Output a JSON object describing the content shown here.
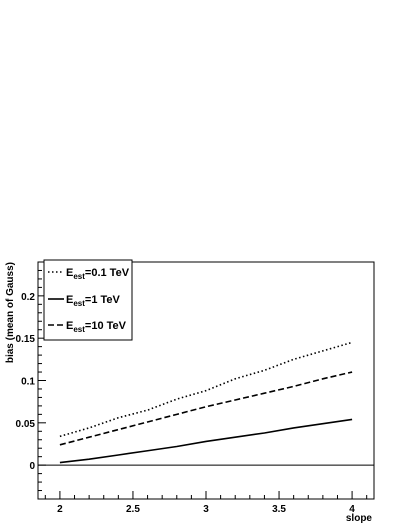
{
  "chart_data": {
    "type": "line",
    "xlabel": "slope",
    "ylabel": "bias (mean of Gauss)",
    "xlim": [
      1.85,
      4.15
    ],
    "ylim": [
      -0.04,
      0.24
    ],
    "x_ticks": [
      {
        "value": 2,
        "label": "2"
      },
      {
        "value": 2.5,
        "label": "2.5"
      },
      {
        "value": 3,
        "label": "3"
      },
      {
        "value": 3.5,
        "label": "3.5"
      },
      {
        "value": 4,
        "label": "4"
      }
    ],
    "y_ticks": [
      {
        "value": 0,
        "label": "0"
      },
      {
        "value": 0.05,
        "label": "0.05"
      },
      {
        "value": 0.1,
        "label": "0.1"
      },
      {
        "value": 0.15,
        "label": "0.15"
      },
      {
        "value": 0.2,
        "label": "0.2"
      }
    ],
    "reference_line_y": 0,
    "grid": false,
    "legend_position": "top-left",
    "x": [
      2.0,
      2.2,
      2.4,
      2.6,
      2.8,
      3.0,
      3.2,
      3.4,
      3.6,
      3.8,
      4.0
    ],
    "series": [
      {
        "name": "E_est=0.1 TeV",
        "label_main": "E",
        "label_sub": "est",
        "label_rest": "=0.1 TeV",
        "style": "dotted",
        "values": [
          0.034,
          0.044,
          0.056,
          0.065,
          0.078,
          0.088,
          0.102,
          0.112,
          0.125,
          0.135,
          0.145
        ]
      },
      {
        "name": "E_est=1 TeV",
        "label_main": "E",
        "label_sub": "est",
        "label_rest": "=1 TeV",
        "style": "solid",
        "values": [
          0.003,
          0.007,
          0.012,
          0.017,
          0.022,
          0.028,
          0.033,
          0.038,
          0.044,
          0.049,
          0.054
        ]
      },
      {
        "name": "E_est=10 TeV",
        "label_main": "E",
        "label_sub": "est",
        "label_rest": "=10 TeV",
        "style": "dashed",
        "values": [
          0.024,
          0.033,
          0.042,
          0.051,
          0.06,
          0.069,
          0.077,
          0.085,
          0.093,
          0.102,
          0.11
        ]
      }
    ]
  }
}
